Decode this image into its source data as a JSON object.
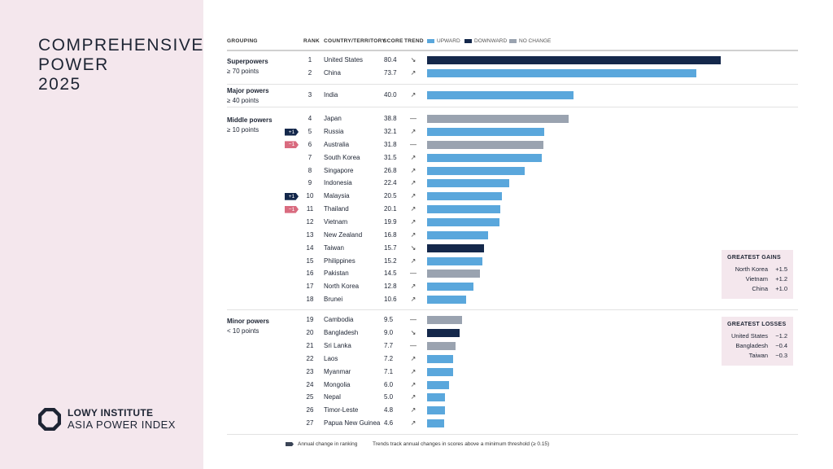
{
  "title": {
    "line1": "COMPREHENSIVE",
    "line2": "POWER",
    "year": "2025"
  },
  "logo": {
    "line1": "LOWY INSTITUTE",
    "line2": "ASIA POWER INDEX"
  },
  "headers": {
    "grouping": "GROUPING",
    "rank": "RANK",
    "country": "COUNTRY/TERRITORY",
    "score": "SCORE",
    "trend": "TREND"
  },
  "legend": [
    {
      "label": "UPWARD",
      "color": "#5aa7dc"
    },
    {
      "label": "DOWNWARD",
      "color": "#14284b"
    },
    {
      "label": "NO CHANGE",
      "color": "#9aa3b0"
    }
  ],
  "groups": [
    {
      "name": "Superpowers",
      "threshold": "≥ 70 points"
    },
    {
      "name": "Major powers",
      "threshold": "≥ 40 points"
    },
    {
      "name": "Middle powers",
      "threshold": "≥ 10 points"
    },
    {
      "name": "Minor powers",
      "threshold": "< 10 points"
    }
  ],
  "chart_data": {
    "type": "bar",
    "orientation": "horizontal",
    "xlim": [
      0,
      80.4
    ],
    "trend_symbols": {
      "up": "↗",
      "down": "↘",
      "none": "—"
    },
    "rows": [
      {
        "group": 0,
        "rank": "1",
        "country": "United States",
        "score": 80.4,
        "trend": "down"
      },
      {
        "group": 0,
        "rank": "2",
        "country": "China",
        "score": 73.7,
        "trend": "up"
      },
      {
        "group": 1,
        "rank": "3",
        "country": "India",
        "score": 40.0,
        "trend": "up"
      },
      {
        "group": 2,
        "rank": "4",
        "country": "Japan",
        "score": 38.8,
        "trend": "none"
      },
      {
        "group": 2,
        "rank": "5",
        "country": "Russia",
        "score": 32.1,
        "trend": "up",
        "change": "+1"
      },
      {
        "group": 2,
        "rank": "6",
        "country": "Australia",
        "score": 31.8,
        "trend": "none",
        "change": "−1"
      },
      {
        "group": 2,
        "rank": "7",
        "country": "South Korea",
        "score": 31.5,
        "trend": "up"
      },
      {
        "group": 2,
        "rank": "8",
        "country": "Singapore",
        "score": 26.8,
        "trend": "up"
      },
      {
        "group": 2,
        "rank": "9",
        "country": "Indonesia",
        "score": 22.4,
        "trend": "up"
      },
      {
        "group": 2,
        "rank": "10",
        "country": "Malaysia",
        "score": 20.5,
        "trend": "up",
        "change": "+1"
      },
      {
        "group": 2,
        "rank": "11",
        "country": "Thailand",
        "score": 20.1,
        "trend": "up",
        "change": "−1"
      },
      {
        "group": 2,
        "rank": "12",
        "country": "Vietnam",
        "score": 19.9,
        "trend": "up"
      },
      {
        "group": 2,
        "rank": "13",
        "country": "New Zealand",
        "score": 16.8,
        "trend": "up"
      },
      {
        "group": 2,
        "rank": "14",
        "country": "Taiwan",
        "score": 15.7,
        "trend": "down"
      },
      {
        "group": 2,
        "rank": "15",
        "country": "Philippines",
        "score": 15.2,
        "trend": "up"
      },
      {
        "group": 2,
        "rank": "16",
        "country": "Pakistan",
        "score": 14.5,
        "trend": "none"
      },
      {
        "group": 2,
        "rank": "17",
        "country": "North Korea",
        "score": 12.8,
        "trend": "up"
      },
      {
        "group": 2,
        "rank": "18",
        "country": "Brunei",
        "score": 10.6,
        "trend": "up"
      },
      {
        "group": 3,
        "rank": "19",
        "country": "Cambodia",
        "score": 9.5,
        "trend": "none"
      },
      {
        "group": 3,
        "rank": "20",
        "country": "Bangladesh",
        "score": 9.0,
        "trend": "down"
      },
      {
        "group": 3,
        "rank": "21",
        "country": "Sri Lanka",
        "score": 7.7,
        "trend": "none"
      },
      {
        "group": 3,
        "rank": "22",
        "country": "Laos",
        "score": 7.2,
        "trend": "up"
      },
      {
        "group": 3,
        "rank": "23",
        "country": "Myanmar",
        "score": 7.1,
        "trend": "up"
      },
      {
        "group": 3,
        "rank": "24",
        "country": "Mongolia",
        "score": 6.0,
        "trend": "up"
      },
      {
        "group": 3,
        "rank": "25",
        "country": "Nepal",
        "score": 5.0,
        "trend": "up"
      },
      {
        "group": 3,
        "rank": "26",
        "country": "Timor-Leste",
        "score": 4.8,
        "trend": "up"
      },
      {
        "group": 3,
        "rank": "27",
        "country": "Papua New Guinea",
        "score": 4.6,
        "trend": "up"
      }
    ],
    "colors": {
      "up": "#5aa7dc",
      "down": "#14284b",
      "none": "#9aa3b0",
      "rank_up": "#14284b",
      "rank_down": "#d96b7f"
    }
  },
  "gains": {
    "title": "GREATEST GAINS",
    "items": [
      {
        "country": "North Korea",
        "value": "+1.5"
      },
      {
        "country": "Vietnam",
        "value": "+1.2"
      },
      {
        "country": "China",
        "value": "+1.0"
      }
    ]
  },
  "losses": {
    "title": "GREATEST LOSSES",
    "items": [
      {
        "country": "United States",
        "value": "−1.2"
      },
      {
        "country": "Bangladesh",
        "value": "−0.4"
      },
      {
        "country": "Taiwan",
        "value": "−0.3"
      }
    ]
  },
  "footer": {
    "ranking_note": "Annual change in ranking",
    "trend_note": "Trends track annual changes in scores above a minimum threshold (≥ 0.15)"
  }
}
